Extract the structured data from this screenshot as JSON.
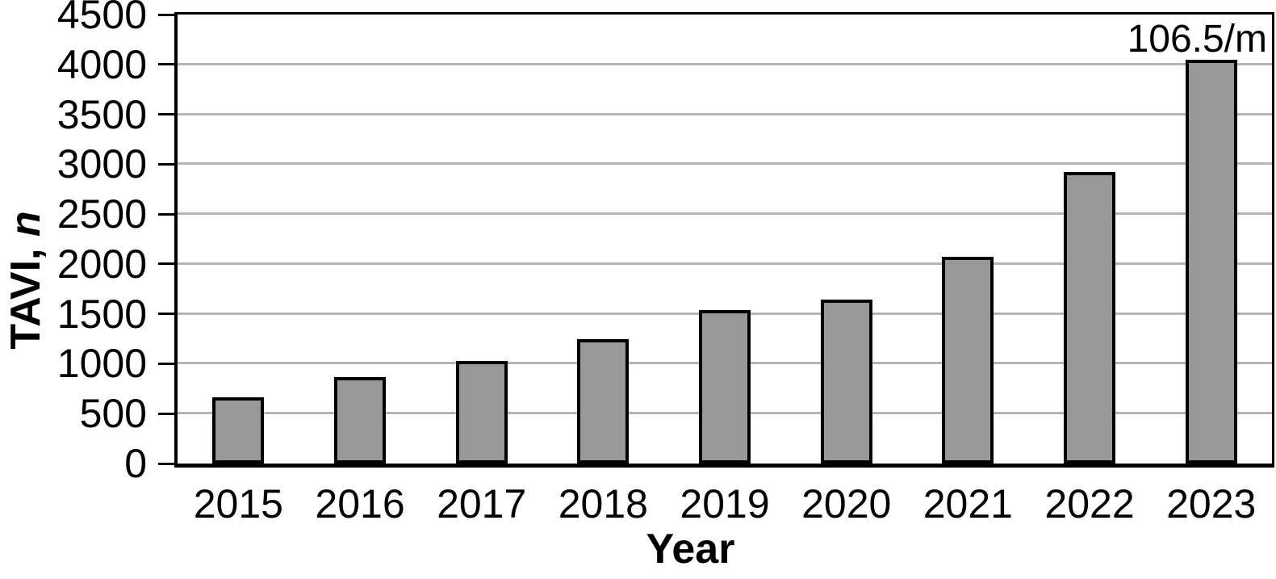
{
  "chart_data": {
    "type": "bar",
    "title": "",
    "xlabel": "Year",
    "ylabel": "TAVI, n",
    "ylabel_main": "TAVI, ",
    "ylabel_symbol": "n",
    "categories": [
      "2015",
      "2016",
      "2017",
      "2018",
      "2019",
      "2020",
      "2021",
      "2022",
      "2023"
    ],
    "values": [
      665,
      865,
      1030,
      1245,
      1540,
      1640,
      2070,
      2925,
      4050
    ],
    "ylim": [
      0,
      4500
    ],
    "y_ticks": [
      0,
      500,
      1000,
      1500,
      2000,
      2500,
      3000,
      3500,
      4000,
      4500
    ],
    "grid": "horizontal-gray",
    "legend": "none",
    "annotation": {
      "text": "106.5/m",
      "category": "2023",
      "position": "above-last-bar-top-right"
    },
    "colors": {
      "bar_fill": "#989898",
      "bar_border": "#000000",
      "gridline": "#b5b5b5",
      "axis": "#000000",
      "text": "#000000",
      "background": "#ffffff"
    }
  }
}
